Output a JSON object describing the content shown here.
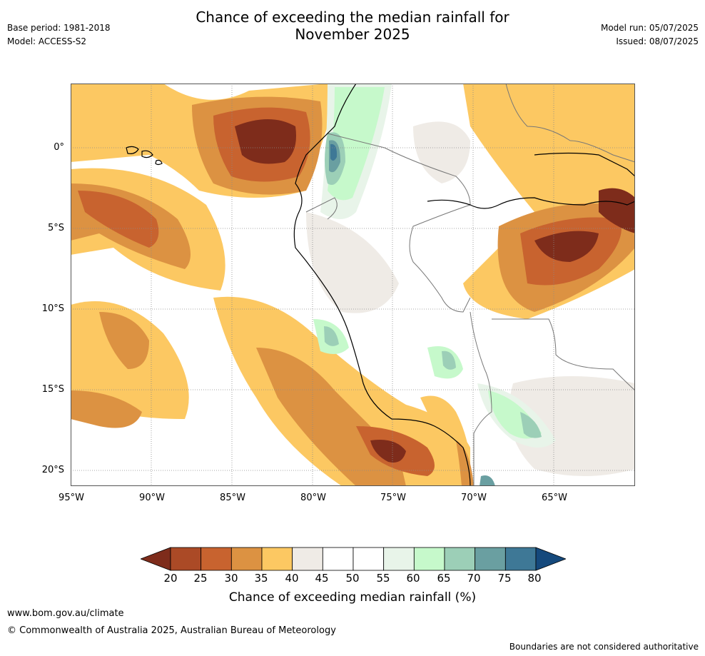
{
  "header": {
    "title_line1": "Chance of exceeding the median rainfall for",
    "title_line2": "November 2025",
    "base_period": "Base period: 1981-2018",
    "model": "Model: ACCESS-S2",
    "model_run": "Model run: 05/07/2025",
    "issued": "Issued: 08/07/2025"
  },
  "map": {
    "lat_labels": [
      "0°",
      "5°S",
      "10°S",
      "15°S",
      "20°S"
    ],
    "lon_labels": [
      "95°W",
      "90°W",
      "85°W",
      "80°W",
      "75°W",
      "70°W",
      "65°W"
    ]
  },
  "colorbar": {
    "ticks": [
      "20",
      "25",
      "30",
      "35",
      "40",
      "45",
      "50",
      "55",
      "60",
      "65",
      "70",
      "75",
      "80"
    ],
    "colors": [
      "#7e2c1b",
      "#ab4a26",
      "#c8632f",
      "#dc9242",
      "#fcc862",
      "#efebe6",
      "#ffffff",
      "#ffffff",
      "#e8f4e9",
      "#c6f9cb",
      "#9ccfb7",
      "#6a9fa1",
      "#3e7896",
      "#15497c"
    ],
    "label": "Chance of exceeding median rainfall (%)"
  },
  "footer": {
    "url": "www.bom.gov.au/climate",
    "copyright": "© Commonwealth of Australia 2025, Australian Bureau of Meteorology",
    "note": "Boundaries are not considered authoritative"
  }
}
